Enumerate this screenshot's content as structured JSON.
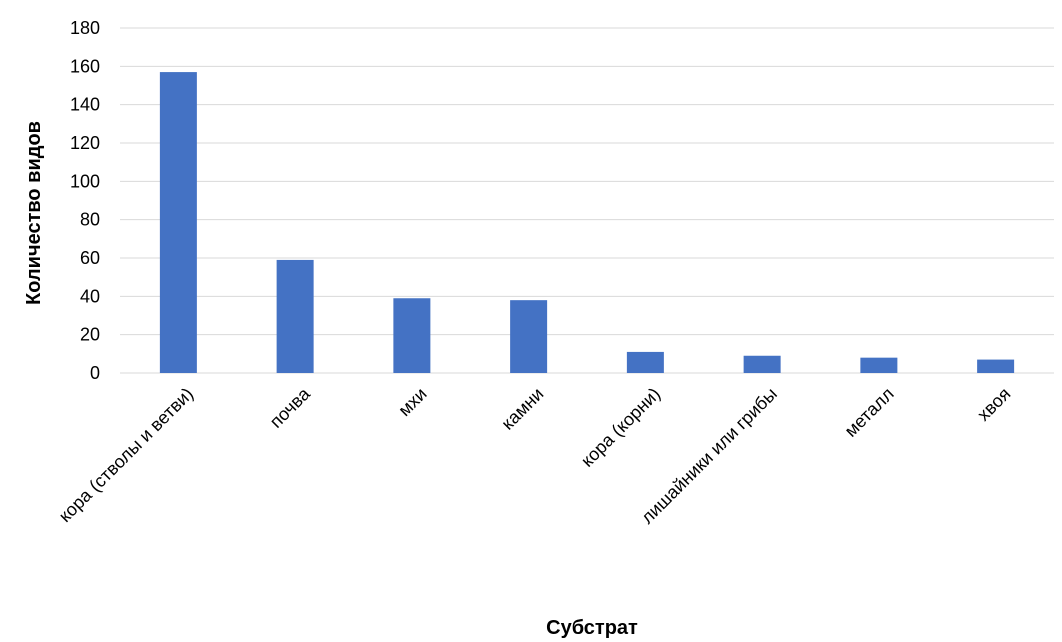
{
  "chart_data": {
    "type": "bar",
    "title": "",
    "xlabel": "Субстрат",
    "ylabel": "Количество видов",
    "categories": [
      "кора (стволы и ветви)",
      "почва",
      "мхи",
      "камни",
      "кора (корни)",
      "лишайники или грибы",
      "металл",
      "хвоя"
    ],
    "values": [
      157,
      59,
      39,
      38,
      11,
      9,
      8,
      7
    ],
    "ylim": [
      0,
      180
    ],
    "yticks": [
      0,
      20,
      40,
      60,
      80,
      100,
      120,
      140,
      160,
      180
    ],
    "grid": true,
    "legend": "none",
    "colors": {
      "bar": "#4472C4",
      "grid": "#D9D9D9",
      "text": "#000000"
    }
  }
}
